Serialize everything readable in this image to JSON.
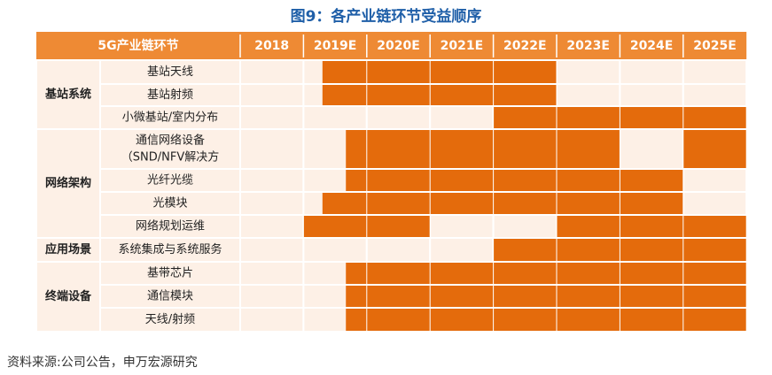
{
  "title": "图9：各产业链环节受益顺序",
  "header": {
    "label": "5G产业链环节",
    "years": [
      "2018",
      "2019E",
      "2020E",
      "2021E",
      "2022E",
      "2023E",
      "2024E",
      "2025E"
    ]
  },
  "colors": {
    "header_bg": "#ee8a34",
    "header_text": "#ffffff",
    "light_cell": "#fdf0e6",
    "bar": "#e46b0c",
    "border": "#ffffff",
    "title": "#1f5fa8"
  },
  "chart_data": {
    "type": "table",
    "groups": [
      {
        "label": "基站系统",
        "rows": [
          0,
          1,
          2
        ]
      },
      {
        "label": "网络架构",
        "rows": [
          3,
          4,
          5,
          6
        ]
      },
      {
        "label": "应用场景",
        "rows": [
          7
        ]
      },
      {
        "label": "终端设备",
        "rows": [
          8,
          9,
          10
        ]
      }
    ],
    "rows": [
      {
        "name": [
          "基站天线"
        ],
        "start": "2019E (mid)",
        "end": "2022E"
      },
      {
        "name": [
          "基站射频"
        ],
        "start": "2019E (mid)",
        "end": "2022E"
      },
      {
        "name": [
          "小微基站/室内分布"
        ],
        "start": "2022E",
        "end": "2025E"
      },
      {
        "name": [
          "通信网络设备",
          "（SND/NFV解决方"
        ],
        "start": "2019E (late)",
        "end": "2025E",
        "gap": "2024E"
      },
      {
        "name": [
          "光纤光缆"
        ],
        "start": "2019E (late)",
        "end": "2024E"
      },
      {
        "name": [
          "光模块"
        ],
        "start": "2019E (mid)",
        "end": "2024E"
      },
      {
        "name": [
          "网络规划运维"
        ],
        "start": "2018 (end)",
        "end": "2025E",
        "gap": "2021E–2022E"
      },
      {
        "name": [
          "系统集成与系统服务"
        ],
        "start": "2022E",
        "end": "2025E"
      },
      {
        "name": [
          "基带芯片"
        ],
        "start": "2019E (late)",
        "end": "2025E"
      },
      {
        "name": [
          "通信模块"
        ],
        "start": "2019E (late)",
        "end": "2025E"
      },
      {
        "name": [
          "天线/射频"
        ],
        "start": "2019E (late)",
        "end": "2025E"
      }
    ],
    "spans": [
      [
        [
          1.3,
          5
        ]
      ],
      [
        [
          1.3,
          5
        ]
      ],
      [
        [
          4,
          8
        ]
      ],
      [
        [
          1.67,
          6
        ],
        [
          7,
          8
        ]
      ],
      [
        [
          1.67,
          7
        ]
      ],
      [
        [
          1.3,
          7
        ]
      ],
      [
        [
          1,
          3
        ],
        [
          5,
          8
        ]
      ],
      [
        [
          4,
          8
        ]
      ],
      [
        [
          1.67,
          8
        ]
      ],
      [
        [
          1.67,
          8
        ]
      ],
      [
        [
          1.67,
          8
        ]
      ]
    ]
  },
  "source": "资料来源:公司公告，申万宏源研究"
}
